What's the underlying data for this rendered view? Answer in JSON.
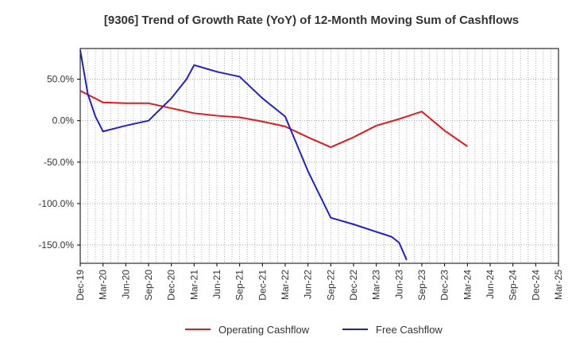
{
  "chart_data": {
    "type": "line",
    "title": "[9306]  Trend of Growth Rate (YoY) of 12-Month Moving Sum of Cashflows",
    "xlabel": "",
    "ylabel": "",
    "ylim": [
      -172,
      87
    ],
    "grid": true,
    "legend_position": "bottom",
    "x_ticks": [
      "Dec-19",
      "Mar-20",
      "Jun-20",
      "Sep-20",
      "Dec-20",
      "Mar-21",
      "Jun-21",
      "Sep-21",
      "Dec-21",
      "Mar-22",
      "Jun-22",
      "Sep-22",
      "Dec-22",
      "Mar-23",
      "Jun-23",
      "Sep-23",
      "Dec-23",
      "Mar-24",
      "Jun-24",
      "Sep-24",
      "Dec-24",
      "Mar-25"
    ],
    "y_ticks": [
      50,
      0,
      -50,
      -100,
      -150
    ],
    "y_tick_labels": [
      "50.0%",
      "0.0%",
      "-50.0%",
      "-100.0%",
      "-150.0%"
    ],
    "series": [
      {
        "name": "Operating Cashflow",
        "color": "#e31a1c",
        "points": [
          {
            "x": "Dec-19",
            "y": 36
          },
          {
            "x": "Mar-20",
            "y": 22
          },
          {
            "x": "Jun-20",
            "y": 21
          },
          {
            "x": "Sep-20",
            "y": 21
          },
          {
            "x": "Dec-20",
            "y": 15
          },
          {
            "x": "Mar-21",
            "y": 9
          },
          {
            "x": "Jun-21",
            "y": 6
          },
          {
            "x": "Sep-21",
            "y": 4
          },
          {
            "x": "Dec-21",
            "y": -1
          },
          {
            "x": "Mar-22",
            "y": -7
          },
          {
            "x": "Jun-22",
            "y": -20
          },
          {
            "x": "Sep-22",
            "y": -32
          },
          {
            "x": "Dec-22",
            "y": -20
          },
          {
            "x": "Mar-23",
            "y": -6
          },
          {
            "x": "Jun-23",
            "y": 2
          },
          {
            "x": "Sep-23",
            "y": 11
          },
          {
            "x": "Dec-23",
            "y": -12
          },
          {
            "x": "Mar-24",
            "y": -31
          }
        ]
      },
      {
        "name": "Free Cashflow",
        "color": "#1f1fd6",
        "points": [
          {
            "x": "Dec-19",
            "y": 85
          },
          {
            "x": "Jan-20",
            "y": 32
          },
          {
            "x": "Feb-20",
            "y": 5
          },
          {
            "x": "Mar-20",
            "y": -13
          },
          {
            "x": "Jun-20",
            "y": -6
          },
          {
            "x": "Sep-20",
            "y": 0
          },
          {
            "x": "Dec-20",
            "y": 27
          },
          {
            "x": "Feb-21",
            "y": 50
          },
          {
            "x": "Mar-21",
            "y": 67
          },
          {
            "x": "Jun-21",
            "y": 59
          },
          {
            "x": "Sep-21",
            "y": 53
          },
          {
            "x": "Dec-21",
            "y": 27
          },
          {
            "x": "Mar-22",
            "y": 5
          },
          {
            "x": "Jun-22",
            "y": -61
          },
          {
            "x": "Sep-22",
            "y": -117
          },
          {
            "x": "Dec-22",
            "y": -125
          },
          {
            "x": "Mar-23",
            "y": -134
          },
          {
            "x": "Apr-23",
            "y": -137
          },
          {
            "x": "May-23",
            "y": -140
          },
          {
            "x": "Jun-23",
            "y": -147
          },
          {
            "x": "Jul-23",
            "y": -168
          }
        ]
      }
    ]
  }
}
